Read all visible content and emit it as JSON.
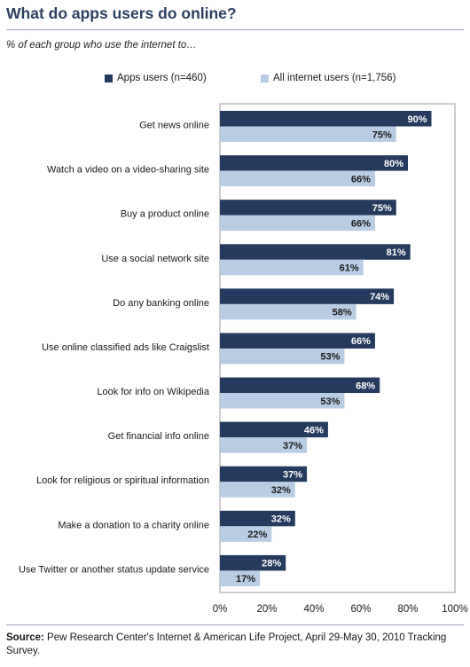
{
  "header": {
    "title": "What do apps users do online?",
    "subtitle": "% of each group who use the internet to…"
  },
  "colors": {
    "apps": "#243a5e",
    "all": "#b8cce4",
    "title": "#2b3f5e"
  },
  "chart_data": {
    "type": "bar",
    "orientation": "horizontal",
    "categories": [
      "Get news online",
      "Watch a video on a video-sharing site",
      "Buy a product online",
      "Use a social network site",
      "Do any banking online",
      "Use online classified ads like Craigslist",
      "Look for info on Wikipedia",
      "Get financial info online",
      "Look for religious or spiritual information",
      "Make a donation to a charity online",
      "Use Twitter or another status update service"
    ],
    "series": [
      {
        "name": "Apps users (n=460)",
        "values": [
          90,
          80,
          75,
          81,
          74,
          66,
          68,
          46,
          37,
          32,
          28
        ]
      },
      {
        "name": "All internet users (n=1,756)",
        "values": [
          75,
          66,
          66,
          61,
          58,
          53,
          53,
          37,
          32,
          22,
          17
        ]
      }
    ],
    "xlim": [
      0,
      100
    ],
    "xticks": [
      "0%",
      "20%",
      "40%",
      "60%",
      "80%",
      "100%"
    ],
    "value_suffix": "%",
    "legend": "top",
    "grid": false
  },
  "footer": {
    "source_label": "Source:",
    "source_text": "Pew Research Center's Internet & American Life Project, April 29-May 30, 2010 Tracking Survey."
  }
}
